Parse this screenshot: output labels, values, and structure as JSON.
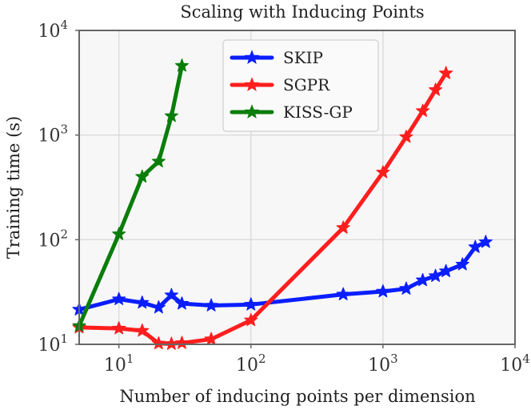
{
  "chart_data": {
    "type": "line",
    "title": "Scaling with Inducing Points",
    "xlabel": "Number of inducing points per dimension",
    "ylabel": "Training time (s)",
    "xscale": "log",
    "yscale": "log",
    "xlim": [
      5,
      10000
    ],
    "ylim": [
      10,
      10000
    ],
    "grid": true,
    "legend_position": "top-center",
    "x_ticks": [
      {
        "value": 10,
        "base": "10",
        "exp": "1"
      },
      {
        "value": 100,
        "base": "10",
        "exp": "2"
      },
      {
        "value": 1000,
        "base": "10",
        "exp": "3"
      },
      {
        "value": 10000,
        "base": "10",
        "exp": "4"
      }
    ],
    "y_ticks": [
      {
        "value": 10,
        "base": "10",
        "exp": "1"
      },
      {
        "value": 100,
        "base": "10",
        "exp": "2"
      },
      {
        "value": 1000,
        "base": "10",
        "exp": "3"
      },
      {
        "value": 10000,
        "base": "10",
        "exp": "4"
      }
    ],
    "series": [
      {
        "name": "SKIP",
        "color": "#0a1eff",
        "x": [
          5,
          10,
          15,
          20,
          25,
          30,
          50,
          100,
          500,
          1000,
          1500,
          2000,
          2500,
          3000,
          4000,
          5000,
          6000
        ],
        "y": [
          21.5,
          27,
          25,
          22.5,
          29.5,
          24.5,
          23.5,
          24,
          30,
          32,
          34,
          41,
          45,
          50,
          58,
          85,
          95
        ]
      },
      {
        "name": "SGPR",
        "color": "#ff1e1e",
        "x": [
          5,
          10,
          15,
          20,
          25,
          30,
          50,
          100,
          500,
          1000,
          1500,
          2000,
          2500,
          3000
        ],
        "y": [
          14.5,
          14.2,
          13.5,
          10.2,
          10.1,
          10.3,
          11.2,
          17,
          130,
          440,
          960,
          1700,
          2700,
          3900
        ]
      },
      {
        "name": "KISS-GP",
        "color": "#0a7d0a",
        "x": [
          5,
          10,
          15,
          20,
          25,
          30
        ],
        "y": [
          15,
          113,
          400,
          560,
          1520,
          4600
        ]
      }
    ]
  }
}
